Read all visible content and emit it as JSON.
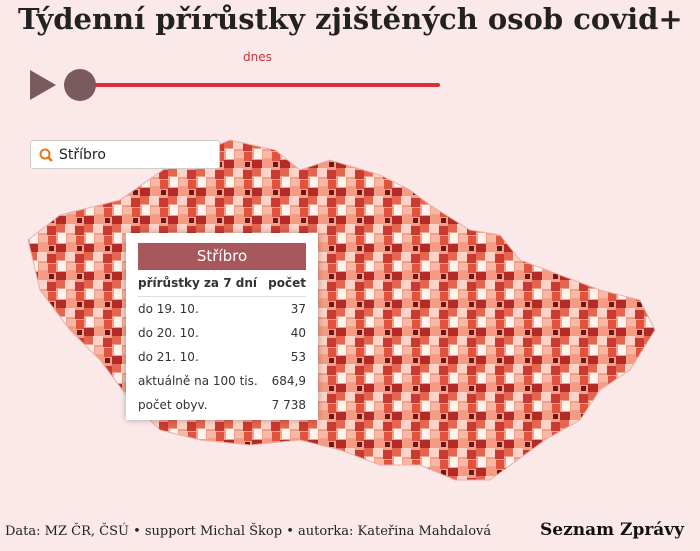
{
  "header": {
    "title": "Týdenní přírůstky zjištěných osob covid+"
  },
  "slider": {
    "label": "dnes"
  },
  "search": {
    "value": "Stříbro"
  },
  "tooltip": {
    "title": "Stříbro",
    "columns": [
      "přírůstky za 7 dní",
      "počet"
    ],
    "rows": [
      [
        "do 19. 10.",
        "37"
      ],
      [
        "do 20. 10.",
        "40"
      ],
      [
        "do 21. 10.",
        "53"
      ],
      [
        "aktuálně na 100 tis.",
        "684,9"
      ],
      [
        "počet obyv.",
        "7 738"
      ]
    ]
  },
  "footer": {
    "credits": "Data: MZ ČR, ČSÚ • support Michal Škop • autorka: Kateřina Mahdalová",
    "brand": "Seznam Zprávy"
  }
}
